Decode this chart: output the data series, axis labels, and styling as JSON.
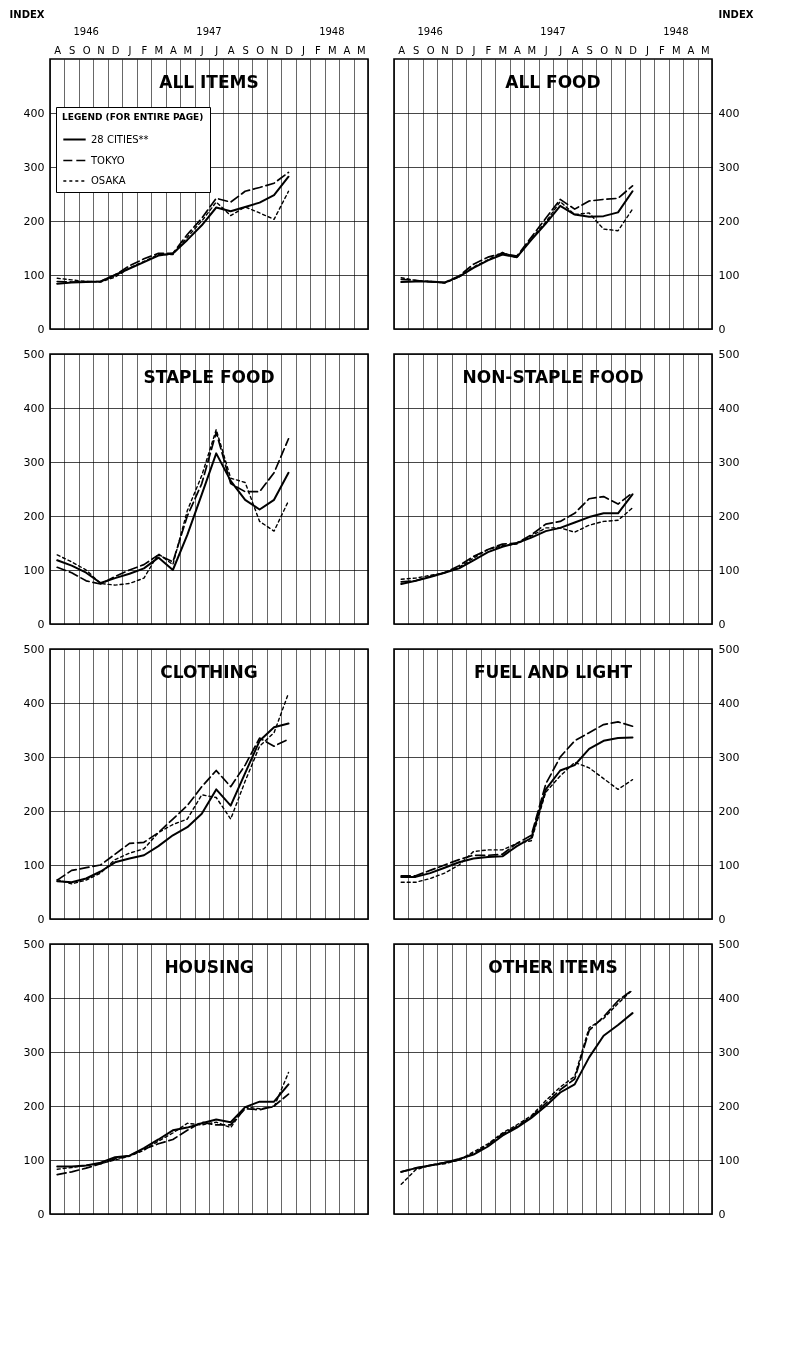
{
  "chart_data": [
    {
      "type": "line",
      "title": "ALL ITEMS",
      "ylabel": "INDEX",
      "legend_title": "LEGEND (FOR ENTIRE PAGE)",
      "legend": "top left",
      "grid": true,
      "categories": [
        "A",
        "S",
        "O",
        "N",
        "D",
        "J",
        "F",
        "M",
        "A",
        "M",
        "J",
        "J",
        "A",
        "S",
        "O",
        "N",
        "D",
        "J",
        "F",
        "M",
        "A",
        "M"
      ],
      "annotations": [
        "1946",
        "1947",
        "1948"
      ],
      "ylim": [
        0,
        500
      ],
      "yticks": [
        0,
        100,
        200,
        300,
        400
      ],
      "series": [
        {
          "name": "28 CITIES**",
          "color": "#000000",
          "line_style": "solid",
          "values": [
            84,
            86,
            87,
            88,
            100,
            112,
            124,
            136,
            140,
            165,
            192,
            225,
            218,
            226,
            234,
            248,
            282,
            null,
            null,
            null,
            null,
            null
          ]
        },
        {
          "name": "TOKYO",
          "color": "#000000",
          "line_style": "dashed",
          "values": [
            88,
            87,
            88,
            88,
            100,
            117,
            130,
            140,
            140,
            175,
            205,
            242,
            235,
            255,
            262,
            270,
            290,
            null,
            null,
            null,
            null,
            null
          ]
        },
        {
          "name": "OSAKA",
          "color": "#000000",
          "line_style": "dotted",
          "values": [
            94,
            91,
            88,
            87,
            96,
            113,
            125,
            138,
            138,
            170,
            200,
            235,
            210,
            226,
            215,
            203,
            255,
            null,
            null,
            null,
            null,
            null
          ]
        }
      ]
    },
    {
      "type": "line",
      "title": "ALL FOOD",
      "ylabel": "INDEX",
      "grid": true,
      "categories": [
        "A",
        "S",
        "O",
        "N",
        "D",
        "J",
        "F",
        "M",
        "A",
        "M",
        "J",
        "J",
        "A",
        "S",
        "O",
        "N",
        "D",
        "J",
        "F",
        "M",
        "A",
        "M"
      ],
      "annotations": [
        "1946",
        "1947",
        "1948"
      ],
      "ylim": [
        0,
        500
      ],
      "yticks": [
        0,
        100,
        200,
        300,
        400
      ],
      "series": [
        {
          "color": "#000000",
          "line_style": "solid",
          "values": [
            87,
            88,
            88,
            86,
            97,
            113,
            127,
            138,
            133,
            165,
            195,
            228,
            212,
            208,
            209,
            216,
            255,
            null,
            null,
            null,
            null,
            null
          ]
        },
        {
          "color": "#000000",
          "line_style": "dashed",
          "values": [
            92,
            90,
            87,
            86,
            98,
            120,
            133,
            140,
            135,
            170,
            205,
            240,
            222,
            237,
            240,
            242,
            265,
            null,
            null,
            null,
            null,
            null
          ]
        },
        {
          "color": "#000000",
          "line_style": "dotted",
          "values": [
            95,
            90,
            88,
            85,
            96,
            115,
            128,
            142,
            132,
            168,
            198,
            236,
            212,
            215,
            185,
            182,
            222,
            null,
            null,
            null,
            null,
            null
          ]
        }
      ]
    },
    {
      "type": "line",
      "title": "STAPLE FOOD",
      "grid": true,
      "tick_labels": "y",
      "categories": [
        null,
        null,
        null,
        null,
        null,
        null,
        null,
        null,
        null,
        null,
        null,
        null,
        null,
        null,
        null,
        null,
        null,
        null,
        null,
        null,
        null,
        null
      ],
      "ylim": [
        0,
        500
      ],
      "yticks": [
        0,
        100,
        200,
        300,
        400,
        500
      ],
      "series": [
        {
          "color": "#000000",
          "line_style": "solid",
          "values": [
            118,
            108,
            95,
            76,
            85,
            93,
            103,
            123,
            100,
            165,
            240,
            316,
            265,
            230,
            212,
            230,
            280,
            null,
            null,
            null,
            null,
            null
          ]
        },
        {
          "color": "#000000",
          "line_style": "dashed",
          "values": [
            105,
            95,
            80,
            74,
            88,
            100,
            110,
            128,
            115,
            200,
            260,
            355,
            260,
            245,
            245,
            280,
            343,
            null,
            null,
            null,
            null,
            null
          ]
        },
        {
          "color": "#000000",
          "line_style": "dotted",
          "values": [
            128,
            115,
            100,
            75,
            72,
            75,
            85,
            130,
            110,
            210,
            275,
            360,
            270,
            262,
            190,
            172,
            228,
            null,
            null,
            null,
            null,
            null
          ]
        }
      ]
    },
    {
      "type": "line",
      "title": "NON-STAPLE FOOD",
      "grid": true,
      "tick_labels": "y",
      "categories": [
        null,
        null,
        null,
        null,
        null,
        null,
        null,
        null,
        null,
        null,
        null,
        null,
        null,
        null,
        null,
        null,
        null,
        null,
        null,
        null,
        null,
        null
      ],
      "ylim": [
        0,
        500
      ],
      "yticks": [
        0,
        100,
        200,
        300,
        400,
        500
      ],
      "series": [
        {
          "color": "#000000",
          "line_style": "solid",
          "values": [
            74,
            80,
            87,
            95,
            103,
            118,
            133,
            143,
            150,
            160,
            172,
            178,
            188,
            198,
            205,
            205,
            240,
            null,
            null,
            null,
            null,
            null
          ]
        },
        {
          "color": "#000000",
          "line_style": "dashed",
          "values": [
            78,
            80,
            88,
            95,
            108,
            125,
            138,
            148,
            150,
            165,
            185,
            190,
            205,
            232,
            236,
            222,
            243,
            null,
            null,
            null,
            null,
            null
          ]
        },
        {
          "color": "#000000",
          "line_style": "dotted",
          "values": [
            83,
            85,
            90,
            95,
            105,
            122,
            138,
            145,
            148,
            163,
            178,
            178,
            170,
            183,
            190,
            192,
            215,
            null,
            null,
            null,
            null,
            null
          ]
        }
      ]
    },
    {
      "type": "line",
      "title": "CLOTHING",
      "grid": true,
      "tick_labels": "y",
      "categories": [
        null,
        null,
        null,
        null,
        null,
        null,
        null,
        null,
        null,
        null,
        null,
        null,
        null,
        null,
        null,
        null,
        null,
        null,
        null,
        null,
        null,
        null
      ],
      "ylim": [
        0,
        500
      ],
      "yticks": [
        0,
        100,
        200,
        300,
        400,
        500
      ],
      "series": [
        {
          "color": "#000000",
          "line_style": "solid",
          "values": [
            70,
            68,
            75,
            88,
            105,
            112,
            118,
            135,
            155,
            170,
            195,
            240,
            210,
            270,
            330,
            355,
            362,
            null,
            null,
            null,
            null,
            null
          ]
        },
        {
          "color": "#000000",
          "line_style": "dashed",
          "values": [
            72,
            90,
            95,
            100,
            120,
            140,
            142,
            160,
            185,
            210,
            245,
            275,
            245,
            285,
            335,
            320,
            333,
            null,
            null,
            null,
            null,
            null
          ]
        },
        {
          "color": "#000000",
          "line_style": "dotted",
          "values": [
            73,
            65,
            72,
            85,
            110,
            122,
            130,
            160,
            175,
            185,
            230,
            225,
            185,
            255,
            320,
            345,
            418,
            null,
            null,
            null,
            null,
            null
          ]
        }
      ]
    },
    {
      "type": "line",
      "title": "FUEL AND LIGHT",
      "grid": true,
      "tick_labels": "y",
      "categories": [
        null,
        null,
        null,
        null,
        null,
        null,
        null,
        null,
        null,
        null,
        null,
        null,
        null,
        null,
        null,
        null,
        null,
        null,
        null,
        null,
        null,
        null
      ],
      "ylim": [
        0,
        500
      ],
      "yticks": [
        0,
        100,
        200,
        300,
        400,
        500
      ],
      "series": [
        {
          "color": "#000000",
          "line_style": "solid",
          "values": [
            78,
            78,
            85,
            95,
            105,
            112,
            115,
            116,
            135,
            150,
            240,
            275,
            285,
            315,
            330,
            335,
            336,
            null,
            null,
            null,
            null,
            null
          ]
        },
        {
          "color": "#000000",
          "line_style": "dashed",
          "values": [
            80,
            80,
            90,
            100,
            110,
            118,
            118,
            120,
            140,
            155,
            250,
            300,
            330,
            345,
            360,
            365,
            357,
            null,
            null,
            null,
            null,
            null
          ]
        },
        {
          "color": "#000000",
          "line_style": "dotted",
          "values": [
            68,
            68,
            75,
            85,
            100,
            125,
            128,
            128,
            140,
            145,
            235,
            265,
            290,
            280,
            260,
            240,
            258,
            null,
            null,
            null,
            null,
            null
          ]
        }
      ]
    },
    {
      "type": "line",
      "title": "HOUSING",
      "grid": true,
      "tick_labels": "y",
      "categories": [
        null,
        null,
        null,
        null,
        null,
        null,
        null,
        null,
        null,
        null,
        null,
        null,
        null,
        null,
        null,
        null,
        null,
        null,
        null,
        null,
        null,
        null
      ],
      "ylim": [
        0,
        500
      ],
      "yticks": [
        0,
        100,
        200,
        300,
        400,
        500
      ],
      "series": [
        {
          "color": "#000000",
          "line_style": "solid",
          "values": [
            88,
            88,
            90,
            95,
            105,
            108,
            122,
            138,
            155,
            160,
            168,
            175,
            170,
            198,
            208,
            208,
            240,
            null,
            null,
            null,
            null,
            null
          ]
        },
        {
          "color": "#000000",
          "line_style": "dashed",
          "values": [
            73,
            78,
            85,
            93,
            102,
            108,
            120,
            130,
            138,
            155,
            170,
            165,
            165,
            195,
            193,
            200,
            222,
            null,
            null,
            null,
            null,
            null
          ]
        },
        {
          "color": "#000000",
          "line_style": "dotted",
          "values": [
            83,
            86,
            90,
            93,
            100,
            107,
            118,
            135,
            150,
            168,
            165,
            170,
            160,
            198,
            195,
            198,
            262,
            null,
            null,
            null,
            null,
            null
          ]
        }
      ]
    },
    {
      "type": "line",
      "title": "OTHER ITEMS",
      "grid": true,
      "tick_labels": "y",
      "categories": [
        null,
        null,
        null,
        null,
        null,
        null,
        null,
        null,
        null,
        null,
        null,
        null,
        null,
        null,
        null,
        null,
        null,
        null,
        null,
        null,
        null,
        null
      ],
      "ylim": [
        0,
        500
      ],
      "yticks": [
        0,
        100,
        200,
        300,
        400,
        500
      ],
      "series": [
        {
          "color": "#000000",
          "line_style": "solid",
          "values": [
            78,
            85,
            90,
            95,
            102,
            110,
            125,
            145,
            160,
            178,
            200,
            225,
            240,
            290,
            330,
            350,
            372,
            null,
            null,
            null,
            null,
            null
          ]
        },
        {
          "color": "#000000",
          "line_style": "dashed",
          "values": [
            78,
            85,
            90,
            95,
            100,
            112,
            128,
            148,
            162,
            180,
            205,
            230,
            250,
            340,
            365,
            395,
            415,
            null,
            null,
            null,
            null,
            null
          ]
        },
        {
          "color": "#000000",
          "line_style": "dotted",
          "values": [
            55,
            82,
            90,
            93,
            100,
            115,
            130,
            150,
            165,
            182,
            210,
            235,
            255,
            345,
            362,
            390,
            415,
            null,
            null,
            null,
            null,
            null
          ]
        }
      ]
    }
  ]
}
